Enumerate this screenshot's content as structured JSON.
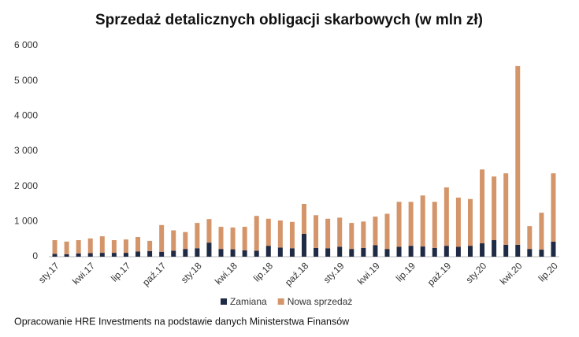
{
  "chart_data": {
    "type": "stacked_bar",
    "title": "Sprzedaż detalicznych obligacji skarbowych (w mln zł)",
    "source": "Opracowanie HRE Investments na podstawie danych Ministerstwa Finansów",
    "categories": [
      "sty.17",
      null,
      null,
      "kwi.17",
      null,
      null,
      "lip.17",
      null,
      null,
      "paź.17",
      null,
      null,
      "sty.18",
      null,
      null,
      "kwi.18",
      null,
      null,
      "lip.18",
      null,
      null,
      "paź.18",
      null,
      null,
      "sty.19",
      null,
      null,
      "kwi.19",
      null,
      null,
      "lip.19",
      null,
      null,
      "paź.19",
      null,
      null,
      "sty.20",
      null,
      null,
      "kwi.20",
      null,
      null,
      "lip.20"
    ],
    "series": [
      {
        "name": "Zamiana",
        "color": "#1f2a44",
        "values": [
          80,
          70,
          90,
          100,
          110,
          110,
          110,
          150,
          160,
          140,
          170,
          220,
          240,
          400,
          220,
          210,
          180,
          170,
          310,
          260,
          240,
          650,
          250,
          240,
          280,
          220,
          250,
          330,
          220,
          280,
          310,
          290,
          250,
          310,
          280,
          310,
          380,
          470,
          340,
          340,
          220,
          200,
          430
        ]
      },
      {
        "name": "Nowa sprzedaż",
        "color": "#d4956a",
        "values": [
          390,
          360,
          380,
          420,
          470,
          360,
          380,
          410,
          290,
          760,
          580,
          480,
          720,
          670,
          630,
          620,
          670,
          990,
          770,
          770,
          750,
          850,
          930,
          840,
          830,
          740,
          750,
          810,
          1000,
          1280,
          1250,
          1450,
          1310,
          1660,
          1400,
          1330,
          2100,
          1810,
          2030,
          5080,
          650,
          1050,
          1940
        ]
      }
    ],
    "ylim": [
      0,
      6000
    ],
    "yticks": [
      0,
      {
        "value": 1000,
        "label": "1 000"
      },
      {
        "value": 2000,
        "label": "2 000"
      },
      {
        "value": 3000,
        "label": "3 000"
      },
      {
        "value": 4000,
        "label": "4 000"
      },
      {
        "value": 5000,
        "label": "5 000"
      },
      {
        "value": 6000,
        "label": "6 000"
      }
    ],
    "legend": "bottom"
  }
}
